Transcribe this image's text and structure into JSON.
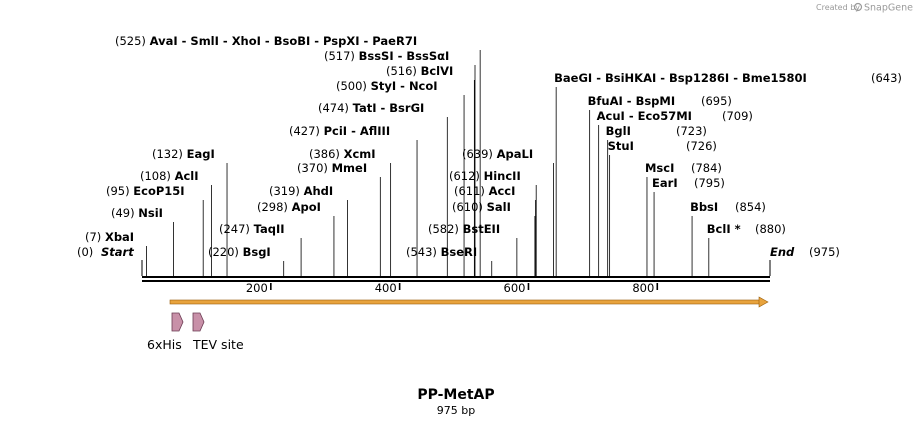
{
  "credit": {
    "prefix": "Created by",
    "brand": "SnapGene"
  },
  "map": {
    "name": "PP-MetAP",
    "length_label": "975 bp",
    "length": 975,
    "start_label": "Start",
    "end_label": "End",
    "start_pos": "(0)",
    "end_pos": "(975)",
    "ticks": [
      {
        "value": 200,
        "label": "200"
      },
      {
        "value": 400,
        "label": "400"
      },
      {
        "value": 600,
        "label": "600"
      },
      {
        "value": 800,
        "label": "800"
      }
    ]
  },
  "sites": [
    {
      "id": "xbai",
      "pos": 7,
      "pos_label": "(7)",
      "name": "XbaI"
    },
    {
      "id": "nsii",
      "pos": 49,
      "pos_label": "(49)",
      "name": "NsiI"
    },
    {
      "id": "ecop15i",
      "pos": 95,
      "pos_label": "(95)",
      "name": "EcoP15I"
    },
    {
      "id": "acli",
      "pos": 108,
      "pos_label": "(108)",
      "name": "AclI"
    },
    {
      "id": "eagi",
      "pos": 132,
      "pos_label": "(132)",
      "name": "EagI"
    },
    {
      "id": "bsgi",
      "pos": 220,
      "pos_label": "(220)",
      "name": "BsgI"
    },
    {
      "id": "taqii",
      "pos": 247,
      "pos_label": "(247)",
      "name": "TaqII"
    },
    {
      "id": "apoi",
      "pos": 298,
      "pos_label": "(298)",
      "name": "ApoI"
    },
    {
      "id": "ahdi",
      "pos": 319,
      "pos_label": "(319)",
      "name": "AhdI"
    },
    {
      "id": "mmei",
      "pos": 370,
      "pos_label": "(370)",
      "name": "MmeI"
    },
    {
      "id": "xcmi",
      "pos": 386,
      "pos_label": "(386)",
      "name": "XcmI"
    },
    {
      "id": "pcii",
      "pos": 427,
      "pos_label": "(427)",
      "names": [
        "PciI",
        "AflIII"
      ]
    },
    {
      "id": "tati",
      "pos": 474,
      "pos_label": "(474)",
      "names": [
        "TatI",
        "BsrGI"
      ]
    },
    {
      "id": "styi",
      "pos": 500,
      "pos_label": "(500)",
      "names": [
        "StyI",
        "NcoI"
      ]
    },
    {
      "id": "bclvi",
      "pos": 516,
      "pos_label": "(516)",
      "name": "BclVI"
    },
    {
      "id": "bsssi",
      "pos": 517,
      "pos_label": "(517)",
      "names": [
        "BssSI",
        "BssSαI"
      ]
    },
    {
      "id": "avai",
      "pos": 525,
      "pos_label": "(525)",
      "names": [
        "AvaI",
        "SmlI",
        "XhoI",
        "BsoBI",
        "PspXI",
        "PaeR7I"
      ]
    },
    {
      "id": "bseri",
      "pos": 543,
      "pos_label": "(543)",
      "name": "BseRI"
    },
    {
      "id": "bsteii",
      "pos": 582,
      "pos_label": "(582)",
      "name": "BstEII"
    },
    {
      "id": "sali",
      "pos": 610,
      "pos_label": "(610)",
      "name": "SalI"
    },
    {
      "id": "acci",
      "pos": 611,
      "pos_label": "(611)",
      "name": "AccI"
    },
    {
      "id": "hincii",
      "pos": 612,
      "pos_label": "(612)",
      "name": "HincII"
    },
    {
      "id": "apali",
      "pos": 639,
      "pos_label": "(639)",
      "name": "ApaLI"
    },
    {
      "id": "baegi",
      "pos": 643,
      "pos_label": "(643)",
      "names": [
        "BaeGI",
        "BsiHKAI",
        "Bsp1286I",
        "Bme1580I"
      ]
    },
    {
      "id": "bfuai",
      "pos": 695,
      "pos_label": "(695)",
      "names": [
        "BfuAI",
        "BspMI"
      ]
    },
    {
      "id": "acui",
      "pos": 709,
      "pos_label": "(709)",
      "names": [
        "AcuI",
        "Eco57MI"
      ]
    },
    {
      "id": "bgli",
      "pos": 723,
      "pos_label": "(723)",
      "name": "BglI"
    },
    {
      "id": "stui",
      "pos": 726,
      "pos_label": "(726)",
      "name": "StuI"
    },
    {
      "id": "msci",
      "pos": 784,
      "pos_label": "(784)",
      "name": "MscI"
    },
    {
      "id": "eari",
      "pos": 795,
      "pos_label": "(795)",
      "name": "EarI"
    },
    {
      "id": "bbsi",
      "pos": 854,
      "pos_label": "(854)",
      "name": "BbsI"
    },
    {
      "id": "bcli",
      "pos": 880,
      "pos_label": "(880)",
      "name": "BclI",
      "mark": "*"
    }
  ],
  "features": [
    {
      "id": "6xhis",
      "label": "6xHis",
      "color": "#c890a8"
    },
    {
      "id": "tev",
      "label": "TEV site",
      "color": "#c890a8"
    }
  ],
  "orf": {
    "color": "#e8a33d",
    "start": 35,
    "end": 970
  }
}
